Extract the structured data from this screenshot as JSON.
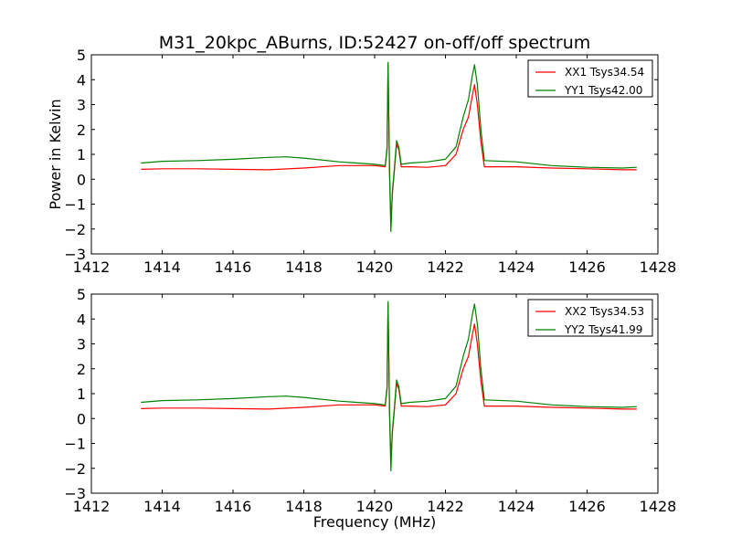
{
  "chart_data": {
    "title": "M31_20kpc_ABurns, ID:52427 on-off/off spectrum",
    "xlabel": "Frequency (MHz)",
    "ylabel": "Power in Kelvin",
    "xlim": [
      1412,
      1428
    ],
    "ylim": [
      -3,
      5
    ],
    "xticks": [
      "1412",
      "1414",
      "1416",
      "1418",
      "1420",
      "1422",
      "1424",
      "1426",
      "1428"
    ],
    "yticks": [
      "−3",
      "−2",
      "−1",
      "0",
      "1",
      "2",
      "3",
      "4",
      "5"
    ],
    "panels": [
      {
        "type": "line",
        "grid": false,
        "legend_position": "top-right",
        "series": [
          {
            "name": "XX1 Tsys34.54",
            "color": "#ff0000",
            "points": [
              [
                1413.4,
                0.4
              ],
              [
                1414,
                0.42
              ],
              [
                1415,
                0.42
              ],
              [
                1416,
                0.4
              ],
              [
                1417,
                0.38
              ],
              [
                1418,
                0.45
              ],
              [
                1419,
                0.55
              ],
              [
                1420,
                0.55
              ],
              [
                1420.3,
                0.5
              ],
              [
                1420.35,
                1.2
              ],
              [
                1420.38,
                4.6
              ],
              [
                1420.42,
                0.4
              ],
              [
                1420.46,
                -1.7
              ],
              [
                1420.5,
                -0.6
              ],
              [
                1420.55,
                0.2
              ],
              [
                1420.62,
                1.4
              ],
              [
                1420.68,
                1.2
              ],
              [
                1420.75,
                0.5
              ],
              [
                1421,
                0.5
              ],
              [
                1421.5,
                0.48
              ],
              [
                1422,
                0.55
              ],
              [
                1422.3,
                1.0
              ],
              [
                1422.5,
                2.0
              ],
              [
                1422.65,
                2.5
              ],
              [
                1422.75,
                3.3
              ],
              [
                1422.82,
                3.8
              ],
              [
                1422.9,
                3.0
              ],
              [
                1423,
                1.5
              ],
              [
                1423.1,
                0.5
              ],
              [
                1424,
                0.5
              ],
              [
                1425,
                0.45
              ],
              [
                1426,
                0.42
              ],
              [
                1427,
                0.38
              ],
              [
                1427.4,
                0.38
              ]
            ]
          },
          {
            "name": "YY1 Tsys42.00",
            "color": "#008000",
            "points": [
              [
                1413.4,
                0.65
              ],
              [
                1414,
                0.72
              ],
              [
                1415,
                0.75
              ],
              [
                1416,
                0.8
              ],
              [
                1417,
                0.88
              ],
              [
                1417.5,
                0.9
              ],
              [
                1418,
                0.85
              ],
              [
                1419,
                0.7
              ],
              [
                1420,
                0.6
              ],
              [
                1420.3,
                0.55
              ],
              [
                1420.35,
                1.3
              ],
              [
                1420.38,
                4.7
              ],
              [
                1420.42,
                0.2
              ],
              [
                1420.46,
                -2.1
              ],
              [
                1420.5,
                -0.5
              ],
              [
                1420.55,
                0.3
              ],
              [
                1420.62,
                1.55
              ],
              [
                1420.68,
                1.3
              ],
              [
                1420.75,
                0.6
              ],
              [
                1421,
                0.65
              ],
              [
                1421.5,
                0.7
              ],
              [
                1422,
                0.8
              ],
              [
                1422.3,
                1.3
              ],
              [
                1422.5,
                2.5
              ],
              [
                1422.65,
                3.2
              ],
              [
                1422.75,
                4.1
              ],
              [
                1422.82,
                4.6
              ],
              [
                1422.9,
                3.8
              ],
              [
                1423,
                2.0
              ],
              [
                1423.1,
                0.75
              ],
              [
                1424,
                0.7
              ],
              [
                1425,
                0.55
              ],
              [
                1426,
                0.48
              ],
              [
                1427,
                0.45
              ],
              [
                1427.4,
                0.48
              ]
            ]
          }
        ]
      },
      {
        "type": "line",
        "grid": false,
        "legend_position": "top-right",
        "series": [
          {
            "name": "XX2 Tsys34.53",
            "color": "#ff0000",
            "points": [
              [
                1413.4,
                0.4
              ],
              [
                1414,
                0.42
              ],
              [
                1415,
                0.42
              ],
              [
                1416,
                0.4
              ],
              [
                1417,
                0.38
              ],
              [
                1418,
                0.45
              ],
              [
                1419,
                0.55
              ],
              [
                1420,
                0.55
              ],
              [
                1420.3,
                0.5
              ],
              [
                1420.35,
                1.2
              ],
              [
                1420.38,
                4.6
              ],
              [
                1420.42,
                0.4
              ],
              [
                1420.46,
                -1.7
              ],
              [
                1420.5,
                -0.6
              ],
              [
                1420.55,
                0.2
              ],
              [
                1420.62,
                1.4
              ],
              [
                1420.68,
                1.2
              ],
              [
                1420.75,
                0.5
              ],
              [
                1421,
                0.5
              ],
              [
                1421.5,
                0.48
              ],
              [
                1422,
                0.55
              ],
              [
                1422.3,
                1.0
              ],
              [
                1422.5,
                2.0
              ],
              [
                1422.65,
                2.5
              ],
              [
                1422.75,
                3.3
              ],
              [
                1422.82,
                3.8
              ],
              [
                1422.9,
                3.0
              ],
              [
                1423,
                1.5
              ],
              [
                1423.1,
                0.5
              ],
              [
                1424,
                0.5
              ],
              [
                1425,
                0.45
              ],
              [
                1426,
                0.42
              ],
              [
                1427,
                0.38
              ],
              [
                1427.4,
                0.38
              ]
            ]
          },
          {
            "name": "YY2 Tsys41.99",
            "color": "#008000",
            "points": [
              [
                1413.4,
                0.65
              ],
              [
                1414,
                0.72
              ],
              [
                1415,
                0.75
              ],
              [
                1416,
                0.8
              ],
              [
                1417,
                0.88
              ],
              [
                1417.5,
                0.9
              ],
              [
                1418,
                0.85
              ],
              [
                1419,
                0.7
              ],
              [
                1420,
                0.6
              ],
              [
                1420.3,
                0.55
              ],
              [
                1420.35,
                1.3
              ],
              [
                1420.38,
                4.7
              ],
              [
                1420.42,
                0.2
              ],
              [
                1420.46,
                -2.1
              ],
              [
                1420.5,
                -0.5
              ],
              [
                1420.55,
                0.3
              ],
              [
                1420.62,
                1.55
              ],
              [
                1420.68,
                1.3
              ],
              [
                1420.75,
                0.6
              ],
              [
                1421,
                0.65
              ],
              [
                1421.5,
                0.7
              ],
              [
                1422,
                0.8
              ],
              [
                1422.3,
                1.3
              ],
              [
                1422.5,
                2.5
              ],
              [
                1422.65,
                3.2
              ],
              [
                1422.75,
                4.1
              ],
              [
                1422.82,
                4.6
              ],
              [
                1422.9,
                3.8
              ],
              [
                1423,
                2.0
              ],
              [
                1423.1,
                0.75
              ],
              [
                1424,
                0.7
              ],
              [
                1425,
                0.55
              ],
              [
                1426,
                0.48
              ],
              [
                1427,
                0.45
              ],
              [
                1427.4,
                0.48
              ]
            ]
          }
        ]
      }
    ]
  }
}
